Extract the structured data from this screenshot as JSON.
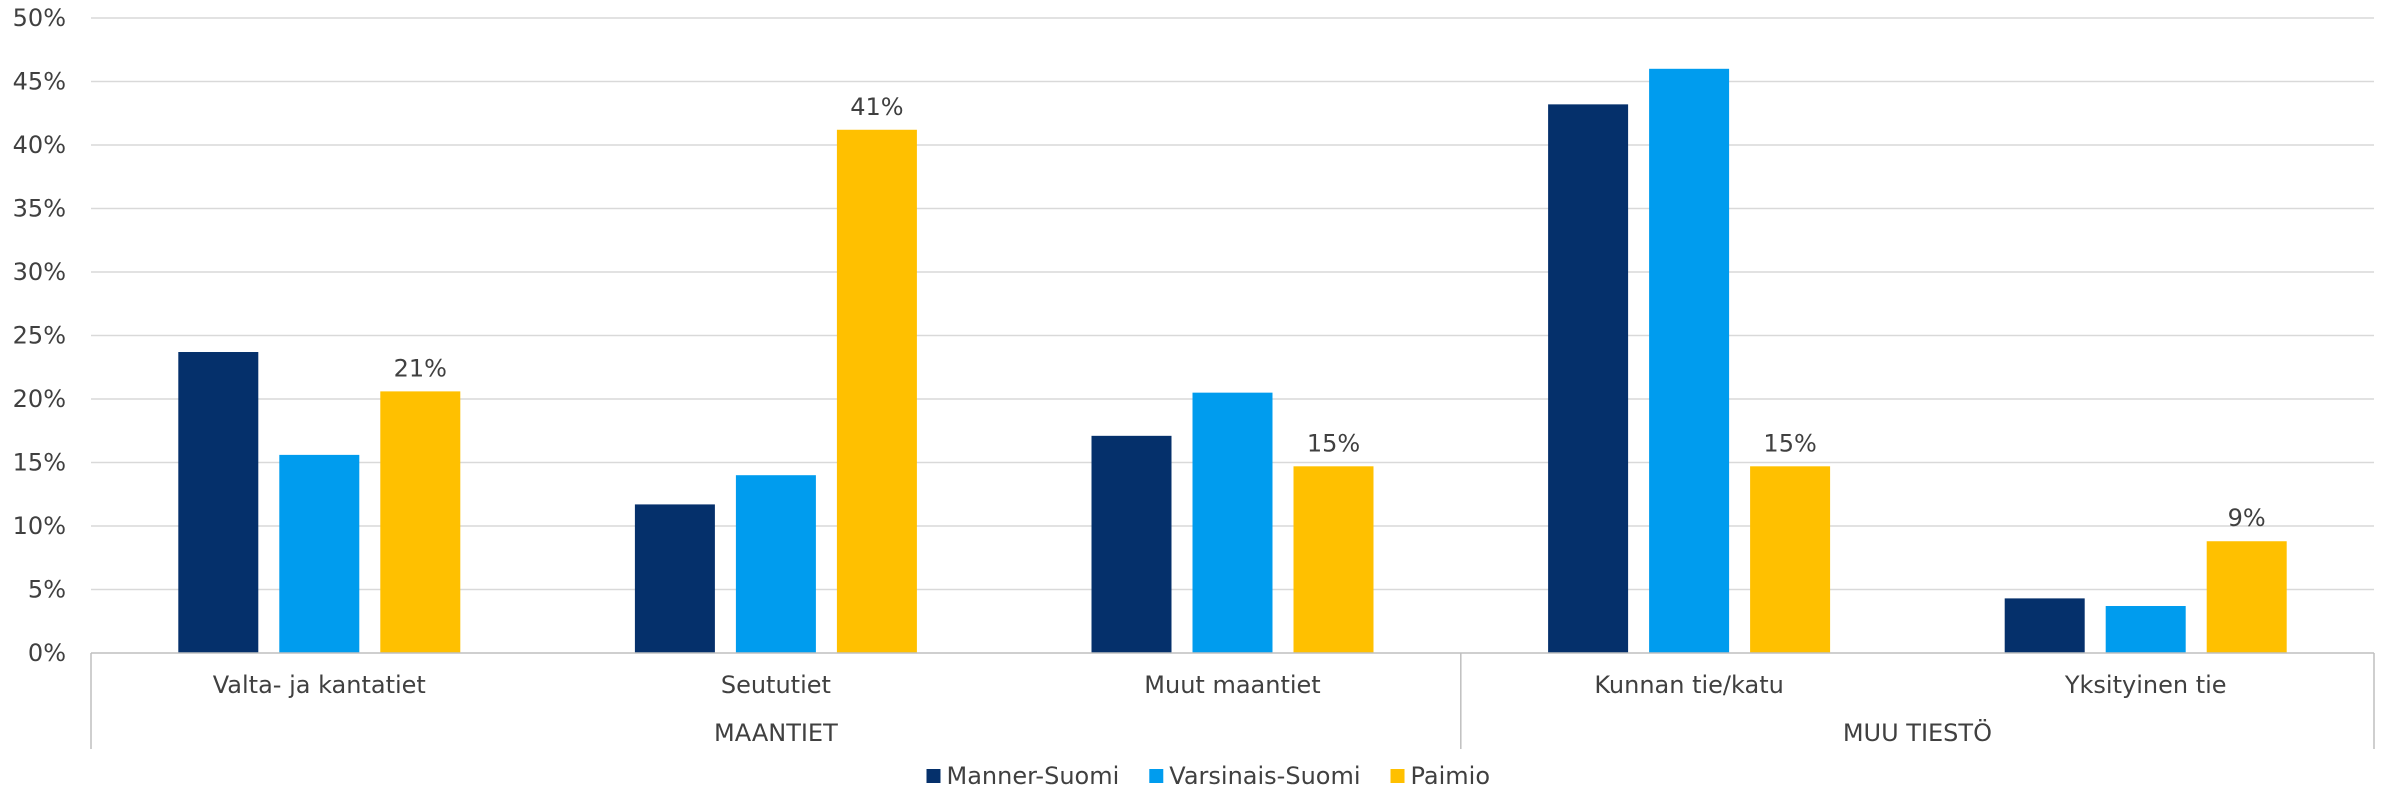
{
  "chart_data": {
    "type": "bar",
    "y_unit": "%",
    "ylim": [
      0,
      50
    ],
    "y_ticks": [
      "0%",
      "5%",
      "10%",
      "15%",
      "20%",
      "25%",
      "30%",
      "35%",
      "40%",
      "45%",
      "50%"
    ],
    "grid": true,
    "legend_position": "bottom",
    "groups": [
      {
        "label": "MAANTIET",
        "categories": [
          "Valta- ja kantatiet",
          "Seututiet",
          "Muut maantiet"
        ]
      },
      {
        "label": "MUU TIESTÖ",
        "categories": [
          "Kunnan tie/katu",
          "Yksityinen tie"
        ]
      }
    ],
    "categories": [
      "Valta- ja kantatiet",
      "Seututiet",
      "Muut maantiet",
      "Kunnan tie/katu",
      "Yksityinen tie"
    ],
    "series": [
      {
        "name": "Manner-Suomi",
        "color": "#05306b",
        "values": [
          23.7,
          11.7,
          17.1,
          43.2,
          4.3
        ]
      },
      {
        "name": "Varsinais-Suomi",
        "color": "#009cee",
        "values": [
          15.6,
          14.0,
          20.5,
          46.0,
          3.7
        ]
      },
      {
        "name": "Paimio",
        "color": "#ffc000",
        "values": [
          20.6,
          41.2,
          14.7,
          14.7,
          8.8
        ],
        "data_labels": [
          "21%",
          "41%",
          "15%",
          "15%",
          "9%"
        ]
      }
    ]
  }
}
